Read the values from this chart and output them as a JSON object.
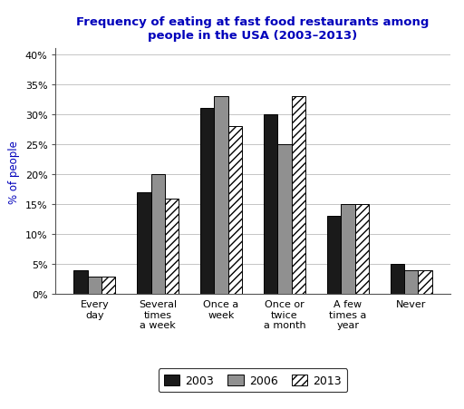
{
  "title_line1": "Frequency of eating at fast food restaurants among",
  "title_line2": "people in the USA (2003–2013)",
  "title_color": "#0000bb",
  "ylabel": "% of people",
  "ylabel_color": "#0000bb",
  "categories": [
    "Every\nday",
    "Several\ntimes\na week",
    "Once a\nweek",
    "Once or\ntwice\na month",
    "A few\ntimes a\nyear",
    "Never"
  ],
  "series": {
    "2003": [
      4,
      17,
      31,
      30,
      13,
      5
    ],
    "2006": [
      3,
      20,
      33,
      25,
      15,
      4
    ],
    "2013": [
      3,
      16,
      28,
      33,
      15,
      4
    ]
  },
  "colors": {
    "2003": "#1a1a1a",
    "2006": "#909090",
    "2013": "#ffffff"
  },
  "hatch": {
    "2003": "",
    "2006": "",
    "2013": "////"
  },
  "ylim": [
    0,
    41
  ],
  "yticks": [
    0,
    5,
    10,
    15,
    20,
    25,
    30,
    35,
    40
  ],
  "ytick_labels": [
    "0%",
    "5%",
    "10%",
    "15%",
    "20%",
    "25%",
    "30%",
    "35%",
    "40%"
  ],
  "legend_labels": [
    "2003",
    "2006",
    "2013"
  ],
  "bar_width": 0.22,
  "figsize": [
    5.12,
    4.52
  ],
  "dpi": 100,
  "background_color": "#ffffff",
  "grid_color": "#bbbbbb",
  "title_fontsize": 9.5,
  "axis_label_fontsize": 8.5,
  "tick_fontsize": 8,
  "legend_fontsize": 9
}
